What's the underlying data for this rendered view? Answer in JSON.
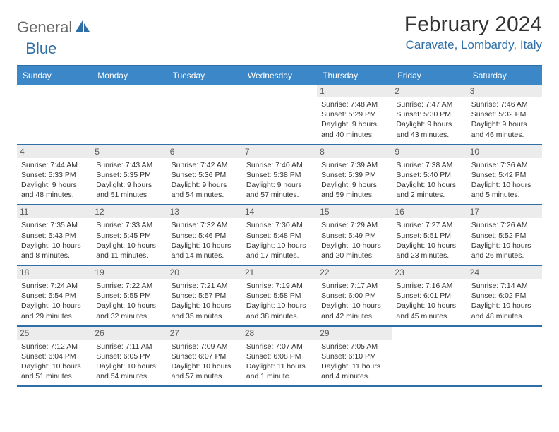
{
  "brand": {
    "text1": "General",
    "text2": "Blue"
  },
  "title": "February 2024",
  "location": "Caravate, Lombardy, Italy",
  "colors": {
    "header_bg": "#3b87c8",
    "border": "#2f6fa8",
    "daynum_bg": "#ececec",
    "brand_gray": "#6a6a6a",
    "brand_blue": "#2f6fa8"
  },
  "daynames": [
    "Sunday",
    "Monday",
    "Tuesday",
    "Wednesday",
    "Thursday",
    "Friday",
    "Saturday"
  ],
  "weeks": [
    [
      null,
      null,
      null,
      null,
      {
        "n": "1",
        "sr": "7:48 AM",
        "ss": "5:29 PM",
        "dl": "9 hours and 40 minutes."
      },
      {
        "n": "2",
        "sr": "7:47 AM",
        "ss": "5:30 PM",
        "dl": "9 hours and 43 minutes."
      },
      {
        "n": "3",
        "sr": "7:46 AM",
        "ss": "5:32 PM",
        "dl": "9 hours and 46 minutes."
      }
    ],
    [
      {
        "n": "4",
        "sr": "7:44 AM",
        "ss": "5:33 PM",
        "dl": "9 hours and 48 minutes."
      },
      {
        "n": "5",
        "sr": "7:43 AM",
        "ss": "5:35 PM",
        "dl": "9 hours and 51 minutes."
      },
      {
        "n": "6",
        "sr": "7:42 AM",
        "ss": "5:36 PM",
        "dl": "9 hours and 54 minutes."
      },
      {
        "n": "7",
        "sr": "7:40 AM",
        "ss": "5:38 PM",
        "dl": "9 hours and 57 minutes."
      },
      {
        "n": "8",
        "sr": "7:39 AM",
        "ss": "5:39 PM",
        "dl": "9 hours and 59 minutes."
      },
      {
        "n": "9",
        "sr": "7:38 AM",
        "ss": "5:40 PM",
        "dl": "10 hours and 2 minutes."
      },
      {
        "n": "10",
        "sr": "7:36 AM",
        "ss": "5:42 PM",
        "dl": "10 hours and 5 minutes."
      }
    ],
    [
      {
        "n": "11",
        "sr": "7:35 AM",
        "ss": "5:43 PM",
        "dl": "10 hours and 8 minutes."
      },
      {
        "n": "12",
        "sr": "7:33 AM",
        "ss": "5:45 PM",
        "dl": "10 hours and 11 minutes."
      },
      {
        "n": "13",
        "sr": "7:32 AM",
        "ss": "5:46 PM",
        "dl": "10 hours and 14 minutes."
      },
      {
        "n": "14",
        "sr": "7:30 AM",
        "ss": "5:48 PM",
        "dl": "10 hours and 17 minutes."
      },
      {
        "n": "15",
        "sr": "7:29 AM",
        "ss": "5:49 PM",
        "dl": "10 hours and 20 minutes."
      },
      {
        "n": "16",
        "sr": "7:27 AM",
        "ss": "5:51 PM",
        "dl": "10 hours and 23 minutes."
      },
      {
        "n": "17",
        "sr": "7:26 AM",
        "ss": "5:52 PM",
        "dl": "10 hours and 26 minutes."
      }
    ],
    [
      {
        "n": "18",
        "sr": "7:24 AM",
        "ss": "5:54 PM",
        "dl": "10 hours and 29 minutes."
      },
      {
        "n": "19",
        "sr": "7:22 AM",
        "ss": "5:55 PM",
        "dl": "10 hours and 32 minutes."
      },
      {
        "n": "20",
        "sr": "7:21 AM",
        "ss": "5:57 PM",
        "dl": "10 hours and 35 minutes."
      },
      {
        "n": "21",
        "sr": "7:19 AM",
        "ss": "5:58 PM",
        "dl": "10 hours and 38 minutes."
      },
      {
        "n": "22",
        "sr": "7:17 AM",
        "ss": "6:00 PM",
        "dl": "10 hours and 42 minutes."
      },
      {
        "n": "23",
        "sr": "7:16 AM",
        "ss": "6:01 PM",
        "dl": "10 hours and 45 minutes."
      },
      {
        "n": "24",
        "sr": "7:14 AM",
        "ss": "6:02 PM",
        "dl": "10 hours and 48 minutes."
      }
    ],
    [
      {
        "n": "25",
        "sr": "7:12 AM",
        "ss": "6:04 PM",
        "dl": "10 hours and 51 minutes."
      },
      {
        "n": "26",
        "sr": "7:11 AM",
        "ss": "6:05 PM",
        "dl": "10 hours and 54 minutes."
      },
      {
        "n": "27",
        "sr": "7:09 AM",
        "ss": "6:07 PM",
        "dl": "10 hours and 57 minutes."
      },
      {
        "n": "28",
        "sr": "7:07 AM",
        "ss": "6:08 PM",
        "dl": "11 hours and 1 minute."
      },
      {
        "n": "29",
        "sr": "7:05 AM",
        "ss": "6:10 PM",
        "dl": "11 hours and 4 minutes."
      },
      null,
      null
    ]
  ],
  "labels": {
    "sunrise": "Sunrise: ",
    "sunset": "Sunset: ",
    "daylight": "Daylight: "
  }
}
